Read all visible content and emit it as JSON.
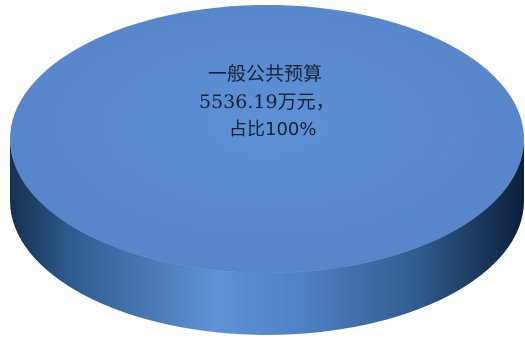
{
  "chart_data": {
    "type": "pie",
    "categories": [
      "一般公共预算"
    ],
    "values": [
      5536.19
    ],
    "percentages": [
      100
    ],
    "unit": "万元",
    "colors": {
      "top": "#5b8fd4",
      "side_light": "#6a98d6",
      "side_dark": "#0c1f3a"
    },
    "data_labels": [
      {
        "line1": "一般公共预算",
        "line2": "5536.19万元，",
        "line3": "占比100%"
      }
    ]
  }
}
